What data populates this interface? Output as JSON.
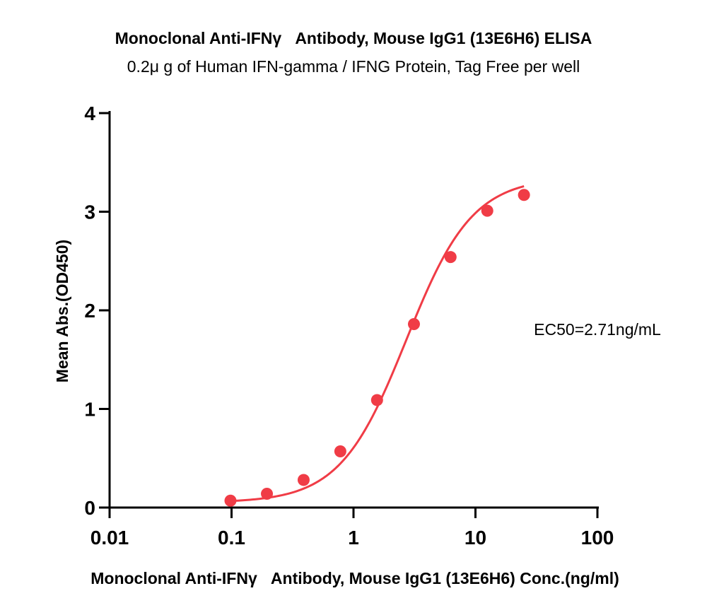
{
  "chart_data": {
    "type": "scatter",
    "title": "Monoclonal Anti-IFNγ   Antibody, Mouse IgG1 (13E6H6) ELISA",
    "subtitle": "0.2μ g of Human IFN-gamma / IFNG Protein, Tag Free per well",
    "xlabel": "Monoclonal Anti-IFNγ   Antibody, Mouse IgG1 (13E6H6) Conc.(ng/ml)",
    "ylabel": "Mean Abs.(OD450)",
    "x_scale": "log",
    "xlim": [
      0.01,
      100
    ],
    "ylim": [
      0,
      4
    ],
    "x_ticks": [
      0.01,
      0.1,
      1,
      10,
      100
    ],
    "x_tick_labels": [
      "0.01",
      "0.1",
      "1",
      "10",
      "100"
    ],
    "y_ticks": [
      0,
      1,
      2,
      3,
      4
    ],
    "y_tick_labels": [
      "0",
      "1",
      "2",
      "3",
      "4"
    ],
    "grid": false,
    "series": [
      {
        "x": [
          0.098,
          0.195,
          0.39,
          0.78,
          1.56,
          3.13,
          6.25,
          12.5,
          25
        ],
        "y": [
          0.07,
          0.14,
          0.28,
          0.57,
          1.09,
          1.86,
          2.54,
          3.01,
          3.17
        ],
        "color": "#f03c46"
      }
    ],
    "annotations": [
      {
        "text": "EC50=2.71ng/mL"
      }
    ],
    "fit": {
      "type": "4PL",
      "bottom": 0.05,
      "top": 3.35,
      "ec50": 2.71,
      "hill": 1.6
    }
  }
}
